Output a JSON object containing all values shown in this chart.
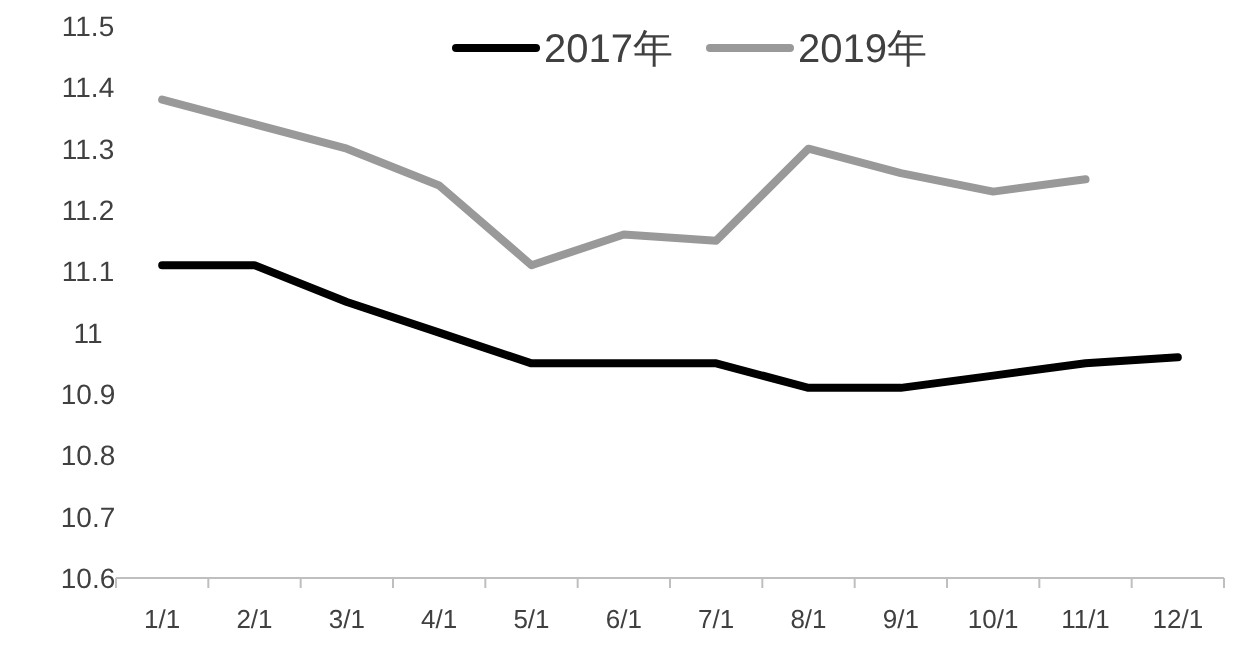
{
  "chart_data": {
    "type": "line",
    "categories": [
      "1/1",
      "2/1",
      "3/1",
      "4/1",
      "5/1",
      "6/1",
      "7/1",
      "8/1",
      "9/1",
      "10/1",
      "11/1",
      "12/1"
    ],
    "series": [
      {
        "name": "2017年",
        "color": "#000000",
        "values": [
          11.11,
          11.11,
          11.05,
          11.0,
          10.95,
          10.95,
          10.95,
          10.91,
          10.91,
          10.93,
          10.95,
          10.96
        ]
      },
      {
        "name": "2019年",
        "color": "#999999",
        "values": [
          11.38,
          11.34,
          11.3,
          11.24,
          11.11,
          11.16,
          11.15,
          11.3,
          11.26,
          11.23,
          11.25,
          null
        ]
      }
    ],
    "ylim": [
      10.6,
      11.5
    ],
    "yticks": [
      10.6,
      10.7,
      10.8,
      10.9,
      {
        "value": 11,
        "label": "11"
      },
      11.1,
      11.2,
      11.3,
      11.4,
      11.5
    ],
    "grid": false,
    "legend": "top",
    "line_style": "solid"
  }
}
